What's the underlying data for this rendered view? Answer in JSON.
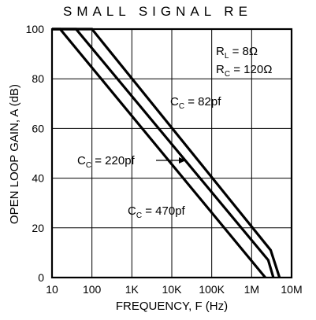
{
  "chart_data": {
    "type": "line",
    "title": "SMALL SIGNAL RE",
    "xlabel": "FREQUENCY, F (Hz)",
    "ylabel": "OPEN LOOP GAIN, A (dB)",
    "x_scale": "log",
    "xlim": [
      10,
      10000000
    ],
    "ylim": [
      0,
      100
    ],
    "x_ticks": [
      {
        "value": 10,
        "label": "10"
      },
      {
        "value": 100,
        "label": "100"
      },
      {
        "value": 1000,
        "label": "1K"
      },
      {
        "value": 10000,
        "label": "10K"
      },
      {
        "value": 100000,
        "label": "100K"
      },
      {
        "value": 1000000,
        "label": "1M"
      },
      {
        "value": 10000000,
        "label": "10M"
      }
    ],
    "y_ticks": [
      {
        "value": 0,
        "label": "0"
      },
      {
        "value": 20,
        "label": "20"
      },
      {
        "value": 40,
        "label": "40"
      },
      {
        "value": 60,
        "label": "60"
      },
      {
        "value": 80,
        "label": "80"
      },
      {
        "value": 100,
        "label": "100"
      }
    ],
    "grid": true,
    "series": [
      {
        "name": "CC = 82pf",
        "points": [
          [
            10,
            100
          ],
          [
            100,
            100
          ],
          [
            3000000,
            11
          ],
          [
            5000000,
            0
          ]
        ]
      },
      {
        "name": "CC = 220pf",
        "points": [
          [
            10,
            100
          ],
          [
            40,
            100
          ],
          [
            2600000,
            7
          ],
          [
            3500000,
            0
          ]
        ]
      },
      {
        "name": "CC = 470pf",
        "points": [
          [
            10,
            100
          ],
          [
            16,
            100
          ],
          [
            2200000,
            0
          ]
        ]
      }
    ],
    "annotations": [
      {
        "id": "rl",
        "main": "R",
        "sub": "L",
        "rest": " = 8Ω"
      },
      {
        "id": "rc",
        "main": "R",
        "sub": "C",
        "rest": " = 120Ω"
      },
      {
        "id": "cc82",
        "main": "C",
        "sub": "C",
        "rest": " = 82pf"
      },
      {
        "id": "cc220",
        "main": "C",
        "sub": "C",
        "rest": " = 220pf"
      },
      {
        "id": "cc470",
        "main": "C",
        "sub": "C",
        "rest": " = 470pf"
      }
    ]
  }
}
